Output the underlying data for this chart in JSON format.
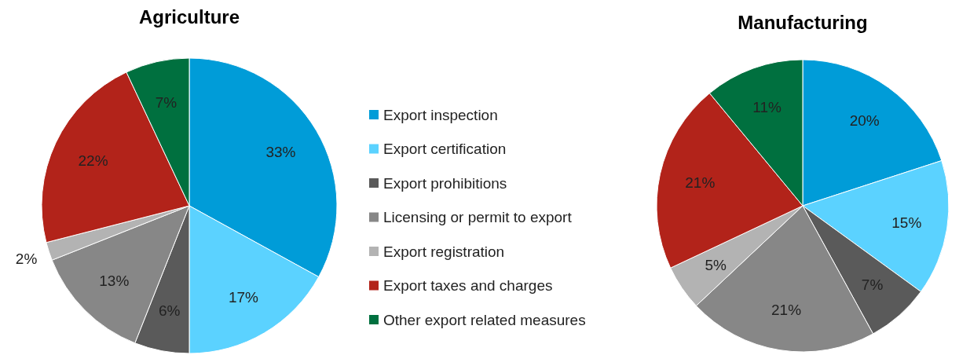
{
  "chart_data": [
    {
      "type": "pie",
      "title": "Agriculture",
      "categories": [
        "Export inspection",
        "Export certification",
        "Export prohibitions",
        "Licensing or permit to export",
        "Export registration",
        "Export taxes and charges",
        "Other export related measures"
      ],
      "values": [
        33,
        17,
        6,
        13,
        2,
        22,
        7
      ],
      "colors": [
        "#009cd8",
        "#5bd2ff",
        "#5a5a5a",
        "#878787",
        "#b3b3b3",
        "#b2231a",
        "#00703f"
      ],
      "value_labels": [
        "33%",
        "17%",
        "6%",
        "13%",
        "2%",
        "22%",
        "7%"
      ],
      "legend": "right"
    },
    {
      "type": "pie",
      "title": "Manufacturing",
      "categories": [
        null,
        null,
        null,
        null,
        null,
        null,
        null
      ],
      "values": [
        20,
        15,
        7,
        21,
        5,
        21,
        11
      ],
      "colors": [
        "#009cd8",
        "#5bd2ff",
        "#5a5a5a",
        "#878787",
        "#b3b3b3",
        "#b2231a",
        "#00703f"
      ],
      "value_labels": [
        "20%",
        "15%",
        "7%",
        "21%",
        "5%",
        "21%",
        "11%"
      ]
    }
  ]
}
